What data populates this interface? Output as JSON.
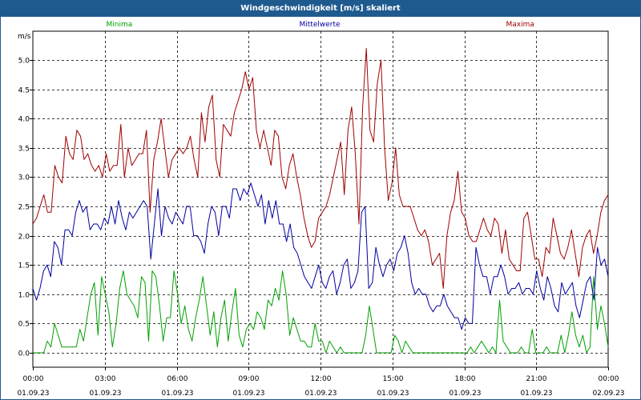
{
  "window": {
    "title": "Windgeschwindigkeit [m/s] skaliert"
  },
  "colors": {
    "title_bar": "#1f5a8f",
    "minima": "#00a000",
    "mittel": "#0000a0",
    "maxima": "#a00000",
    "grid": "#000000"
  },
  "chart_data": {
    "type": "line",
    "ylabel": "m/s",
    "ylim": [
      0,
      5.2
    ],
    "yticks": [
      "0.0",
      "0.5",
      "1.0",
      "1.5",
      "2.0",
      "2.5",
      "3.0",
      "3.5",
      "4.0",
      "4.5",
      "5.0"
    ],
    "xlim": [
      0,
      24
    ],
    "xticks": [
      {
        "time": "00:00",
        "date": "01.09.23"
      },
      {
        "time": "03:00",
        "date": "01.09.23"
      },
      {
        "time": "06:00",
        "date": "01.09.23"
      },
      {
        "time": "09:00",
        "date": "01.09.23"
      },
      {
        "time": "12:00",
        "date": "01.09.23"
      },
      {
        "time": "15:00",
        "date": "01.09.23"
      },
      {
        "time": "18:00",
        "date": "01.09.23"
      },
      {
        "time": "21:00",
        "date": "01.09.23"
      },
      {
        "time": "00:00",
        "date": "02.09.23"
      }
    ],
    "grid": true,
    "series": [
      {
        "name": "Minima",
        "color": "#00a000",
        "values": [
          0.0,
          0.0,
          0.0,
          0.0,
          0.2,
          0.1,
          0.5,
          0.3,
          0.1,
          0.1,
          0.1,
          0.1,
          0.1,
          0.4,
          0.2,
          0.6,
          1.0,
          1.2,
          0.3,
          1.3,
          1.0,
          0.7,
          0.1,
          0.5,
          1.1,
          1.4,
          1.0,
          0.9,
          0.8,
          0.6,
          1.3,
          1.2,
          0.2,
          1.4,
          1.3,
          0.8,
          0.2,
          0.6,
          0.6,
          1.4,
          1.0,
          0.5,
          0.8,
          0.4,
          0.2,
          0.6,
          0.9,
          1.3,
          0.8,
          0.3,
          0.7,
          0.1,
          0.6,
          0.9,
          0.2,
          0.7,
          1.1,
          0.3,
          0.1,
          0.4,
          0.5,
          0.4,
          0.7,
          0.6,
          0.4,
          0.9,
          0.8,
          1.1,
          0.9,
          1.4,
          1.0,
          0.3,
          0.6,
          0.4,
          0.2,
          0.2,
          0.1,
          0.1,
          0.5,
          0.2,
          0.2,
          0.0,
          0.2,
          0.1,
          0.0,
          0.1,
          0.0,
          0.0,
          0.0,
          0.0,
          0.0,
          0.0,
          0.3,
          0.8,
          0.4,
          0.0,
          0.0,
          0.0,
          0.0,
          0.0,
          0.3,
          0.2,
          0.0,
          0.2,
          0.1,
          0.0,
          0.0,
          0.0,
          0.0,
          0.0,
          0.0,
          0.0,
          0.0,
          0.0,
          0.0,
          0.0,
          0.0,
          0.0,
          0.0,
          0.0,
          0.0,
          0.1,
          0.0,
          0.1,
          0.2,
          0.1,
          0.0,
          0.1,
          0.0,
          0.9,
          0.2,
          0.1,
          0.0,
          0.0,
          0.0,
          0.1,
          0.0,
          0.0,
          0.4,
          0.0,
          0.0,
          0.0,
          0.1,
          0.0,
          0.0,
          0.0,
          0.3,
          0.0,
          0.3,
          0.7,
          0.3,
          0.1,
          0.3,
          0.0,
          0.1,
          1.3,
          0.4,
          0.8,
          0.5,
          0.1
        ]
      },
      {
        "name": "Mittelwerte",
        "color": "#0000a0",
        "values": [
          1.1,
          0.9,
          1.1,
          1.4,
          1.5,
          1.3,
          1.9,
          1.8,
          1.5,
          2.1,
          2.1,
          2.0,
          2.4,
          2.6,
          2.4,
          2.5,
          2.1,
          2.2,
          2.2,
          2.1,
          2.3,
          2.2,
          2.5,
          2.2,
          2.6,
          2.3,
          2.1,
          2.4,
          2.3,
          2.4,
          2.5,
          2.6,
          2.5,
          1.6,
          2.2,
          2.8,
          2.0,
          2.5,
          2.3,
          2.2,
          2.4,
          2.3,
          2.2,
          2.5,
          2.5,
          2.0,
          2.0,
          1.9,
          1.7,
          2.2,
          2.5,
          2.4,
          2.0,
          2.5,
          2.5,
          2.3,
          2.8,
          2.8,
          2.6,
          2.8,
          2.7,
          2.9,
          2.7,
          2.5,
          2.7,
          2.2,
          2.6,
          2.3,
          2.6,
          2.2,
          2.2,
          1.9,
          2.2,
          1.8,
          1.7,
          1.5,
          1.3,
          1.2,
          1.1,
          1.3,
          1.5,
          1.2,
          1.1,
          1.3,
          1.4,
          1.0,
          1.2,
          1.5,
          1.6,
          1.1,
          1.2,
          1.4,
          2.4,
          2.5,
          1.1,
          1.2,
          1.8,
          1.5,
          1.3,
          1.5,
          1.6,
          1.4,
          1.7,
          1.8,
          2.0,
          1.7,
          1.2,
          1.0,
          1.1,
          1.0,
          1.0,
          0.8,
          0.7,
          0.8,
          0.8,
          1.0,
          0.8,
          0.7,
          0.6,
          0.6,
          0.4,
          0.6,
          0.5,
          0.5,
          1.8,
          1.5,
          1.3,
          1.3,
          1.0,
          1.3,
          1.3,
          1.5,
          1.3,
          1.0,
          1.1,
          1.1,
          1.2,
          1.0,
          1.1,
          1.1,
          1.0,
          1.4,
          1.1,
          0.9,
          1.3,
          1.1,
          0.8,
          0.7,
          1.2,
          1.0,
          1.1,
          1.2,
          0.8,
          0.6,
          0.9,
          1.2,
          1.3,
          0.9,
          1.8,
          1.5,
          1.6,
          1.3
        ]
      },
      {
        "name": "Maxima",
        "color": "#a00000",
        "values": [
          2.2,
          2.3,
          2.5,
          2.7,
          2.4,
          2.4,
          3.2,
          3.0,
          2.9,
          3.7,
          3.4,
          3.3,
          3.8,
          3.7,
          3.3,
          3.4,
          3.2,
          3.1,
          3.2,
          3.0,
          3.4,
          3.1,
          3.2,
          3.2,
          3.9,
          3.0,
          3.5,
          3.2,
          3.3,
          3.4,
          3.4,
          3.8,
          2.4,
          3.3,
          3.6,
          4.0,
          3.5,
          3.0,
          3.3,
          3.4,
          3.5,
          3.4,
          3.5,
          3.7,
          3.3,
          3.0,
          4.1,
          3.6,
          4.2,
          4.4,
          3.3,
          3.0,
          3.9,
          3.8,
          3.7,
          4.1,
          4.3,
          4.5,
          4.8,
          4.5,
          4.7,
          3.8,
          3.5,
          3.8,
          3.5,
          3.2,
          3.8,
          3.7,
          3.0,
          2.8,
          3.2,
          3.4,
          3.0,
          2.7,
          2.3,
          2.0,
          1.8,
          1.9,
          2.3,
          2.4,
          2.5,
          2.7,
          3.0,
          3.3,
          3.6,
          2.7,
          3.8,
          4.2,
          3.4,
          2.2,
          4.2,
          5.2,
          3.8,
          3.6,
          4.6,
          5.0,
          3.5,
          2.6,
          2.9,
          3.5,
          2.7,
          2.5,
          2.5,
          2.5,
          2.3,
          2.1,
          2.0,
          2.1,
          1.9,
          1.5,
          1.6,
          1.7,
          1.1,
          2.0,
          2.4,
          2.6,
          3.1,
          2.4,
          2.3,
          2.0,
          1.9,
          1.9,
          2.1,
          2.3,
          2.1,
          2.0,
          2.3,
          2.2,
          1.7,
          2.1,
          1.6,
          1.5,
          1.4,
          1.4,
          2.3,
          2.4,
          2.0,
          1.6,
          1.6,
          1.3,
          1.8,
          1.7,
          2.3,
          2.0,
          1.7,
          1.6,
          1.8,
          2.1,
          1.7,
          1.3,
          1.8,
          2.0,
          2.1,
          1.7,
          2.0,
          2.4,
          2.6,
          2.7
        ]
      }
    ]
  }
}
